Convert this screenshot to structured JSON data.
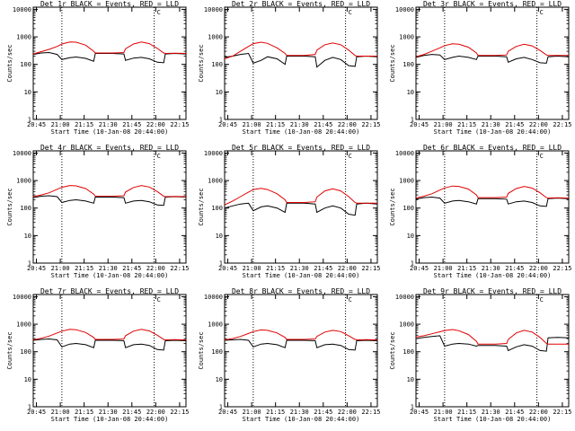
{
  "figure": {
    "colors": {
      "events": "#000000",
      "lld": "#e00000",
      "frame": "#000000"
    },
    "panels": [
      {
        "title": "Det 1r BLACK = Events, RED = LLD",
        "marker": "C"
      },
      {
        "title": "Det 2r BLACK = Events, RED = LLD",
        "marker": "C"
      },
      {
        "title": "Det 3r BLACK = Events, RED = LLD",
        "marker": "C"
      },
      {
        "title": "Det 4r BLACK = Events, RED = LLD",
        "marker": "C"
      },
      {
        "title": "Det 5r BLACK = Events, RED = LLD",
        "marker": "C"
      },
      {
        "title": "Det 6r BLACK = Events, RED = LLD",
        "marker": "C"
      },
      {
        "title": "Det 7r BLACK = Events, RED = LLD",
        "marker": "C"
      },
      {
        "title": "Det 8r BLACK = Events, RED = LLD",
        "marker": "C"
      },
      {
        "title": "Det 9r BLACK = Events, RED = LLD",
        "marker": "C"
      }
    ]
  },
  "chart_data": {
    "type": "line",
    "layout": "3x3 grid",
    "xlabel": "Start Time (10-Jan-08 20:44:00)",
    "ylabel": "Counts/sec",
    "yscale": "log",
    "ylim": [
      1,
      12000
    ],
    "xlim": [
      "20:43",
      "22:19"
    ],
    "x_ticks": [
      "20:45",
      "21:00",
      "21:15",
      "21:30",
      "21:45",
      "22:00",
      "22:15"
    ],
    "y_ticks": [
      "1",
      "10",
      "100",
      "1000",
      "10000"
    ],
    "vlines": [
      "21:01",
      "21:59"
    ],
    "series_names": [
      "Events",
      "LLD"
    ],
    "time_points": [
      "20:43",
      "20:48",
      "20:53",
      "20:58",
      "21:01",
      "21:06",
      "21:10",
      "21:16",
      "21:21",
      "21:22",
      "21:33",
      "21:40",
      "21:41",
      "21:46",
      "21:51",
      "21:56",
      "22:01",
      "22:05",
      "22:06",
      "22:12",
      "22:19"
    ],
    "panels": [
      {
        "events": [
          230,
          260,
          270,
          230,
          150,
          175,
          185,
          165,
          130,
          250,
          250,
          240,
          140,
          170,
          180,
          160,
          120,
          115,
          240,
          250,
          240
        ],
        "lld": [
          240,
          290,
          350,
          450,
          550,
          650,
          640,
          500,
          300,
          260,
          260,
          270,
          370,
          550,
          650,
          570,
          380,
          260,
          250,
          255,
          250
        ]
      },
      {
        "events": [
          180,
          200,
          230,
          250,
          110,
          140,
          190,
          160,
          100,
          200,
          200,
          190,
          80,
          140,
          180,
          150,
          90,
          85,
          190,
          200,
          190
        ],
        "lld": [
          160,
          200,
          300,
          450,
          570,
          640,
          580,
          400,
          250,
          210,
          210,
          230,
          330,
          520,
          600,
          520,
          330,
          210,
          200,
          200,
          200
        ]
      },
      {
        "events": [
          180,
          210,
          230,
          220,
          150,
          180,
          200,
          180,
          150,
          200,
          200,
          190,
          120,
          160,
          180,
          150,
          115,
          110,
          190,
          200,
          190
        ],
        "lld": [
          190,
          230,
          300,
          400,
          480,
          560,
          540,
          420,
          260,
          210,
          210,
          220,
          300,
          450,
          540,
          470,
          320,
          220,
          210,
          210,
          210
        ]
      },
      {
        "events": [
          240,
          270,
          280,
          260,
          160,
          190,
          200,
          180,
          150,
          250,
          250,
          240,
          150,
          180,
          190,
          170,
          130,
          125,
          250,
          260,
          250
        ],
        "lld": [
          260,
          300,
          360,
          480,
          570,
          660,
          640,
          510,
          320,
          270,
          270,
          280,
          380,
          560,
          660,
          580,
          400,
          270,
          260,
          265,
          260
        ]
      },
      {
        "events": [
          100,
          120,
          140,
          150,
          80,
          110,
          120,
          100,
          70,
          150,
          150,
          140,
          70,
          100,
          120,
          100,
          60,
          55,
          140,
          150,
          140
        ],
        "lld": [
          130,
          180,
          260,
          380,
          470,
          520,
          470,
          330,
          200,
          160,
          160,
          170,
          250,
          420,
          500,
          420,
          260,
          160,
          150,
          150,
          150
        ]
      },
      {
        "events": [
          210,
          240,
          250,
          230,
          150,
          180,
          190,
          170,
          140,
          220,
          220,
          210,
          140,
          170,
          180,
          160,
          120,
          115,
          220,
          230,
          220
        ],
        "lld": [
          230,
          270,
          330,
          450,
          540,
          630,
          610,
          490,
          300,
          240,
          240,
          250,
          340,
          510,
          610,
          530,
          360,
          240,
          230,
          235,
          230
        ]
      },
      {
        "events": [
          260,
          280,
          290,
          270,
          150,
          190,
          200,
          180,
          140,
          260,
          260,
          250,
          140,
          180,
          190,
          170,
          120,
          115,
          250,
          260,
          250
        ],
        "lld": [
          270,
          310,
          370,
          480,
          560,
          650,
          630,
          500,
          330,
          280,
          280,
          290,
          380,
          560,
          650,
          570,
          400,
          280,
          270,
          275,
          270
        ]
      },
      {
        "events": [
          260,
          270,
          280,
          260,
          150,
          190,
          200,
          180,
          140,
          260,
          260,
          250,
          140,
          180,
          190,
          170,
          120,
          115,
          250,
          260,
          250
        ],
        "lld": [
          270,
          300,
          360,
          460,
          540,
          620,
          600,
          480,
          330,
          280,
          280,
          290,
          360,
          520,
          600,
          540,
          380,
          280,
          270,
          275,
          270
        ]
      },
      {
        "events": [
          300,
          330,
          360,
          380,
          160,
          190,
          200,
          190,
          160,
          170,
          170,
          160,
          110,
          150,
          180,
          160,
          110,
          105,
          320,
          330,
          320
        ],
        "lld": [
          340,
          380,
          450,
          530,
          590,
          640,
          580,
          420,
          240,
          190,
          190,
          200,
          280,
          480,
          600,
          520,
          330,
          200,
          190,
          190,
          190
        ]
      }
    ]
  }
}
